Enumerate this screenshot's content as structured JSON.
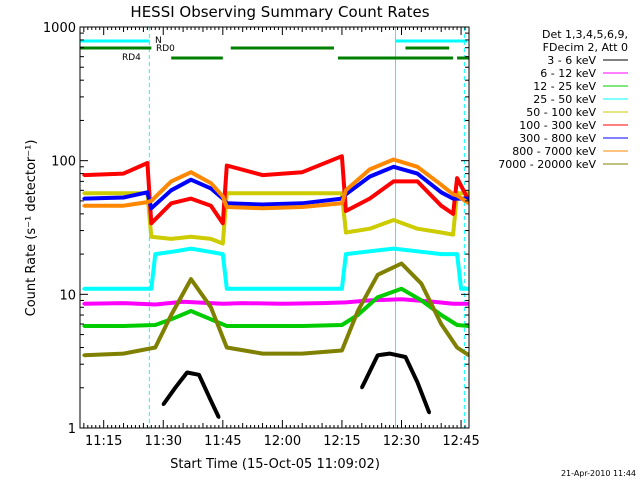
{
  "chart_data": {
    "type": "line",
    "title": "HESSI Observing Summary Count Rates",
    "xlabel": "Start Time (15-Oct-05 11:09:02)",
    "ylabel": "Count Rate (s⁻¹ detector⁻¹)",
    "yscale": "log",
    "ylim": [
      1,
      1000
    ],
    "xlim": [
      "11:09:02",
      "12:47:00"
    ],
    "x_ticks": [
      "11:15",
      "11:30",
      "11:45",
      "12:00",
      "12:15",
      "12:30",
      "12:45"
    ],
    "y_ticks": [
      "1",
      "10",
      "100",
      "1000"
    ],
    "legend_position": "right",
    "legend_header": [
      "Det 1,3,4,5,6,9,",
      "FDecim 2, Att 0"
    ],
    "timestamp": "21-Apr-2010 11:44",
    "series": [
      {
        "name": "3 - 6 keV",
        "color": "#000000",
        "x": [
          "11:26",
          "11:30",
          "11:33",
          "11:36",
          "11:39",
          "11:42",
          "11:44",
          "11:46",
          "12:16",
          "12:20",
          "12:24",
          "12:27",
          "12:31",
          "12:34",
          "12:37",
          "12:41"
        ],
        "y": [
          null,
          1.5,
          2.0,
          2.6,
          2.5,
          1.6,
          1.2,
          null,
          null,
          2.0,
          3.5,
          3.6,
          3.4,
          2.2,
          1.3,
          null
        ]
      },
      {
        "name": "6 - 12 keV",
        "color": "#ff00ff",
        "x": [
          "11:10",
          "11:20",
          "11:28",
          "11:35",
          "11:45",
          "11:50",
          "12:00",
          "12:10",
          "12:16",
          "12:22",
          "12:30",
          "12:38",
          "12:43",
          "12:47"
        ],
        "y": [
          8.5,
          8.6,
          8.4,
          8.8,
          8.5,
          8.6,
          8.5,
          8.6,
          8.7,
          9.0,
          9.2,
          8.8,
          8.5,
          8.5
        ]
      },
      {
        "name": "12 - 25 keV",
        "color": "#00cc00",
        "x": [
          "11:10",
          "11:20",
          "11:28",
          "11:32",
          "11:37",
          "11:42",
          "11:46",
          "11:55",
          "12:05",
          "12:15",
          "12:19",
          "12:24",
          "12:30",
          "12:35",
          "12:40",
          "12:44",
          "12:47"
        ],
        "y": [
          5.8,
          5.8,
          5.9,
          6.5,
          7.5,
          6.5,
          5.8,
          5.8,
          5.8,
          5.9,
          7.0,
          9.5,
          11,
          9.0,
          7.0,
          5.9,
          5.8
        ]
      },
      {
        "name": "25 - 50 keV",
        "color": "#00ffff",
        "x": [
          "11:10",
          "11:20",
          "11:27",
          "11:28",
          "11:33",
          "11:37",
          "11:41",
          "11:45",
          "11:46",
          "11:55",
          "12:05",
          "12:15",
          "12:16",
          "12:22",
          "12:28",
          "12:34",
          "12:40",
          "12:44",
          "12:45",
          "12:47"
        ],
        "y": [
          11,
          11,
          11,
          20,
          21,
          22,
          21,
          20,
          11,
          11,
          11,
          11,
          20,
          21,
          22,
          21,
          20,
          20,
          11,
          11
        ]
      },
      {
        "name": "50 - 100 keV",
        "color": "#cccc00",
        "x": [
          "11:10",
          "11:20",
          "11:26",
          "11:27",
          "11:32",
          "11:37",
          "11:42",
          "11:45",
          "11:46",
          "11:55",
          "12:05",
          "12:15",
          "12:16",
          "12:22",
          "12:28",
          "12:34",
          "12:40",
          "12:43",
          "12:44",
          "12:47"
        ],
        "y": [
          57,
          57,
          57,
          27,
          26,
          27,
          26,
          24,
          57,
          57,
          57,
          57,
          29,
          31,
          36,
          31,
          29,
          28,
          57,
          57
        ]
      },
      {
        "name": "100 - 300 keV",
        "color": "#ff0000",
        "x": [
          "11:10",
          "11:20",
          "11:26",
          "11:27",
          "11:32",
          "11:37",
          "11:42",
          "11:45",
          "11:46",
          "11:55",
          "12:05",
          "12:15",
          "12:16",
          "12:22",
          "12:28",
          "12:34",
          "12:40",
          "12:43",
          "12:44",
          "12:47"
        ],
        "y": [
          78,
          80,
          96,
          34,
          48,
          52,
          46,
          34,
          92,
          78,
          82,
          108,
          42,
          52,
          70,
          70,
          46,
          40,
          74,
          50
        ]
      },
      {
        "name": "300 - 800 keV",
        "color": "#0000ff",
        "x": [
          "11:10",
          "11:20",
          "11:26",
          "11:27",
          "11:32",
          "11:37",
          "11:42",
          "11:45",
          "11:46",
          "11:55",
          "12:05",
          "12:15",
          "12:16",
          "12:22",
          "12:28",
          "12:34",
          "12:40",
          "12:43",
          "12:44",
          "12:47"
        ],
        "y": [
          52,
          53,
          58,
          44,
          60,
          72,
          62,
          52,
          48,
          47,
          48,
          52,
          56,
          76,
          90,
          80,
          58,
          52,
          52,
          52
        ]
      },
      {
        "name": "800 - 7000 keV",
        "color": "#ff8800",
        "x": [
          "11:10",
          "11:20",
          "11:26",
          "11:27",
          "11:32",
          "11:37",
          "11:42",
          "11:45",
          "11:46",
          "11:55",
          "12:05",
          "12:15",
          "12:16",
          "12:22",
          "12:28",
          "12:34",
          "12:40",
          "12:43",
          "12:44",
          "12:47"
        ],
        "y": [
          46,
          46,
          49,
          50,
          70,
          82,
          68,
          54,
          45,
          44,
          45,
          48,
          60,
          86,
          102,
          90,
          66,
          56,
          55,
          48
        ]
      },
      {
        "name": "7000 - 20000 keV",
        "color": "#808000",
        "x": [
          "11:10",
          "11:20",
          "11:28",
          "11:32",
          "11:37",
          "11:42",
          "11:46",
          "11:55",
          "12:05",
          "12:15",
          "12:19",
          "12:24",
          "12:30",
          "12:35",
          "12:40",
          "12:44",
          "12:47"
        ],
        "y": [
          3.5,
          3.6,
          4.0,
          7.0,
          13,
          8.0,
          4.0,
          3.6,
          3.6,
          3.8,
          7.5,
          14,
          17,
          12,
          6.0,
          4.0,
          3.5
        ]
      }
    ],
    "vertical_lines": [
      {
        "x": "11:09:02",
        "color": "#00ffff",
        "style": "solid"
      },
      {
        "x": "11:26:30",
        "color": "#00ffff",
        "style": "dashed"
      },
      {
        "x": "12:28:30",
        "color": "#00ffff",
        "style": "solid"
      },
      {
        "x": "12:45:50",
        "color": "#00ffff",
        "style": "dashed"
      }
    ],
    "flag_bars": [
      {
        "label": "N",
        "color": "#00ffff",
        "segments": [
          [
            "11:09:02",
            "11:26:30"
          ],
          [
            "12:28:30",
            "12:46:30"
          ]
        ]
      },
      {
        "label": "RD0",
        "color": "#008000",
        "segments": [
          [
            "11:09:02",
            "11:27:00"
          ],
          [
            "11:47:00",
            "12:13:00"
          ],
          [
            "12:31:00",
            "12:42:00"
          ]
        ]
      },
      {
        "label": "RD4",
        "color": "#008000",
        "segments": [
          [
            "11:32:00",
            "11:45:00"
          ],
          [
            "12:14:00",
            "12:43:00"
          ],
          [
            "12:44:00",
            "12:47:00"
          ]
        ]
      }
    ]
  }
}
